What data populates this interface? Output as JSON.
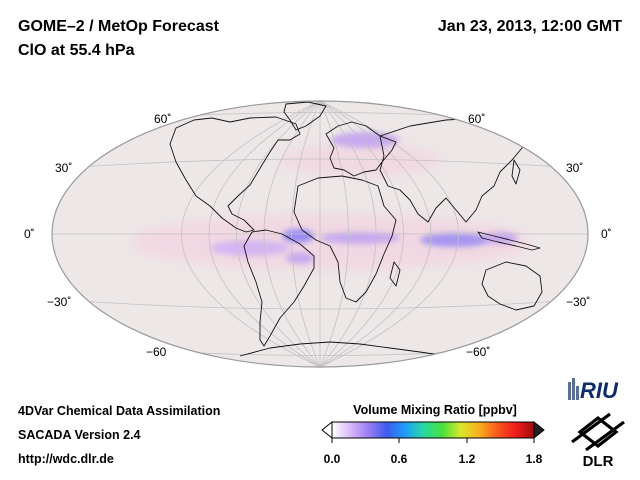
{
  "header": {
    "title_line1": "GOME–2 / MetOp Forecast",
    "title_line2": "ClO at 55.4 hPa",
    "datetime": "Jan 23, 2013, 12:00 GMT"
  },
  "map": {
    "projection": "Aitoff / Hammer world map",
    "lat_labels_left": [
      "60˚",
      "30˚",
      "0˚",
      "−30˚",
      "−60"
    ],
    "lat_labels_right": [
      "60˚",
      "30˚",
      "0˚",
      "−30˚",
      "−60˚"
    ],
    "colors": {
      "ocean": "#ede7e7",
      "field_low": "#f2d8e2",
      "field_mid": "#c7a8f0",
      "field_high": "#9a8cf4",
      "coast": "#111111",
      "grid": "#c2c2c2"
    }
  },
  "colorbar": {
    "title": "Volume Mixing Ratio [ppbv]",
    "ticks": [
      "0.0",
      "0.6",
      "1.2",
      "1.8"
    ],
    "colors": [
      "#ffffff",
      "#d8b8f8",
      "#9a7cf2",
      "#3c5cf0",
      "#1ca0f8",
      "#2ad8a0",
      "#46e03c",
      "#d8e82c",
      "#f8b01c",
      "#f85a1c",
      "#f01c1c",
      "#a00c0c"
    ]
  },
  "footer": {
    "line1": "4DVar Chemical Data Assimilation",
    "line2": "SACADA Version 2.4",
    "line3": "http://wdc.dlr.de"
  },
  "logos": {
    "riu": "RIU",
    "dlr": "DLR"
  }
}
